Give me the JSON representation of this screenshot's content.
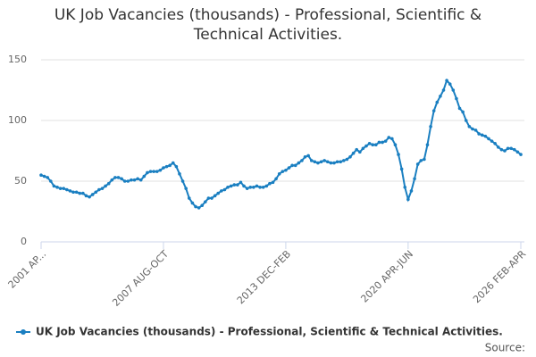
{
  "chart_data": {
    "type": "line",
    "title": "UK Job Vacancies (thousands) - Professional, Scientific & Technical Activities.",
    "source": "Source:",
    "categories": [
      "2001 AP...",
      null,
      null,
      null,
      null,
      null,
      null,
      null,
      null,
      null,
      null,
      null,
      null,
      null,
      null,
      null,
      null,
      null,
      null,
      null,
      null,
      null,
      null,
      null,
      null,
      null,
      null,
      null,
      null,
      null,
      null,
      null,
      null,
      null,
      null,
      null,
      null,
      null,
      "2007 AUG-OCT",
      null,
      null,
      null,
      null,
      null,
      null,
      null,
      null,
      null,
      null,
      null,
      null,
      null,
      null,
      null,
      null,
      null,
      null,
      null,
      null,
      null,
      null,
      null,
      null,
      null,
      null,
      null,
      null,
      null,
      null,
      null,
      null,
      null,
      null,
      null,
      null,
      null,
      "2013 DEC-FEB",
      null,
      null,
      null,
      null,
      null,
      null,
      null,
      null,
      null,
      null,
      null,
      null,
      null,
      null,
      null,
      null,
      null,
      null,
      null,
      null,
      null,
      null,
      null,
      null,
      null,
      null,
      null,
      null,
      null,
      null,
      null,
      null,
      null,
      null,
      null,
      null,
      null,
      "2020 APR-JUN",
      null,
      null,
      null,
      null,
      null,
      null,
      null,
      null,
      null,
      null,
      null,
      null,
      null,
      null,
      null,
      null,
      null,
      null,
      null,
      null,
      null,
      null,
      null,
      null,
      null,
      null,
      null,
      null,
      null,
      null,
      null,
      null,
      null,
      null,
      "2026 FEB-APR"
    ],
    "series": [
      {
        "name": "UK Job Vacancies (thousands) - Professional, Scientific & Technical Activities.",
        "color": "#1a7fc1",
        "values": [
          55,
          54,
          53,
          50,
          46,
          45,
          44,
          44,
          43,
          42,
          41,
          41,
          40,
          40,
          38,
          37,
          39,
          41,
          43,
          44,
          46,
          48,
          51,
          53,
          53,
          52,
          50,
          50,
          51,
          51,
          52,
          51,
          54,
          57,
          58,
          58,
          58,
          59,
          61,
          62,
          63,
          65,
          62,
          56,
          50,
          44,
          36,
          32,
          29,
          28,
          30,
          33,
          36,
          36,
          38,
          40,
          42,
          43,
          45,
          46,
          47,
          47,
          49,
          46,
          44,
          45,
          45,
          46,
          45,
          45,
          46,
          48,
          49,
          52,
          56,
          58,
          59,
          61,
          63,
          63,
          65,
          67,
          70,
          71,
          67,
          66,
          65,
          66,
          67,
          66,
          65,
          65,
          66,
          66,
          67,
          68,
          70,
          73,
          76,
          74,
          77,
          79,
          81,
          80,
          80,
          82,
          82,
          83,
          86,
          85,
          80,
          72,
          60,
          45,
          35,
          42,
          52,
          64,
          67,
          68,
          80,
          95,
          108,
          115,
          120,
          125,
          133,
          130,
          125,
          118,
          110,
          107,
          100,
          95,
          93,
          92,
          89,
          88,
          87,
          85,
          83,
          81,
          78,
          76,
          75,
          77,
          77,
          76,
          74,
          72
        ]
      }
    ],
    "ylim": [
      0,
      150
    ],
    "yticks": [
      0,
      50,
      100,
      150
    ],
    "grid": true
  }
}
